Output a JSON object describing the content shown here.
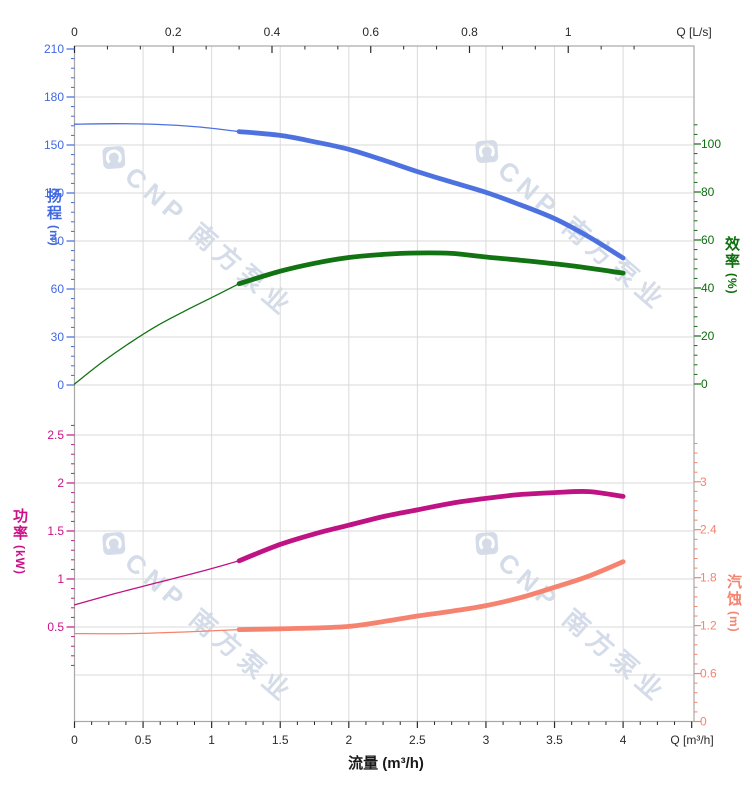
{
  "watermark": {
    "text": "CNP 南方泵业",
    "logo": "cnp-diamond-logo",
    "color": "#b9c6dc"
  },
  "chart_data": {
    "type": "line",
    "title": "",
    "x_unit": "m³/h",
    "grid": "on",
    "axes": {
      "x_top": {
        "title": "Q [L/s]",
        "ticks": [
          0,
          0.2,
          0.4,
          0.6,
          0.8,
          1
        ],
        "color": "#2a2a2a",
        "range": [
          0,
          1.25
        ]
      },
      "x_bottom": {
        "title": "Q [m³/h]",
        "axis_label": "流量 (m³/h)",
        "ticks": [
          0,
          0.5,
          1,
          1.5,
          2,
          2.5,
          3,
          3.5,
          4
        ],
        "color": "#2a2a2a",
        "range": [
          0,
          4.5
        ]
      },
      "head": {
        "title": "扬程",
        "unit": "(m)",
        "ticks": [
          210,
          180,
          150,
          120,
          90,
          60,
          30,
          0
        ],
        "color": "#4169e1",
        "range": [
          0,
          210
        ]
      },
      "eff": {
        "title": "效率",
        "unit": "(%)",
        "ticks": [
          100,
          80,
          60,
          40,
          20,
          0
        ],
        "color": "#0d6e0d",
        "range": [
          0,
          100
        ]
      },
      "power": {
        "title": "功率",
        "unit": "(kW)",
        "ticks": [
          2.5,
          2,
          1.5,
          1,
          0.5
        ],
        "color": "#cc1188",
        "range": [
          0.5,
          2.5
        ]
      },
      "npsh": {
        "title": "汽蚀",
        "unit": "(m)",
        "ticks": [
          3,
          2.4,
          1.8,
          1.2,
          0.6,
          0
        ],
        "color": "#f5836f",
        "range": [
          0,
          3
        ]
      }
    },
    "series": [
      {
        "name": "head-curve",
        "axis": "head",
        "unit": "m",
        "color": "#4d72e0",
        "split_q": 1.2,
        "thin": [
          [
            0,
            163
          ],
          [
            0.3,
            163.3
          ],
          [
            0.6,
            162.9
          ],
          [
            0.9,
            161.3
          ],
          [
            1.2,
            158.4
          ]
        ],
        "thick": [
          [
            1.2,
            158.4
          ],
          [
            1.5,
            156
          ],
          [
            1.75,
            152
          ],
          [
            2,
            147.3
          ],
          [
            2.25,
            140.6
          ],
          [
            2.5,
            133.4
          ],
          [
            2.75,
            126.8
          ],
          [
            3,
            120.4
          ],
          [
            3.25,
            112.6
          ],
          [
            3.5,
            104
          ],
          [
            3.75,
            92.6
          ],
          [
            4,
            79.4
          ]
        ]
      },
      {
        "name": "efficiency-curve",
        "axis": "eff",
        "unit": "%",
        "color": "#117311",
        "split_q": 1.2,
        "thin": [
          [
            0,
            0
          ],
          [
            0.2,
            9
          ],
          [
            0.4,
            17
          ],
          [
            0.6,
            24.2
          ],
          [
            0.8,
            30.3
          ],
          [
            1,
            36
          ],
          [
            1.2,
            41.8
          ]
        ],
        "thick": [
          [
            1.2,
            41.8
          ],
          [
            1.5,
            47
          ],
          [
            1.75,
            50.3
          ],
          [
            2,
            52.7
          ],
          [
            2.25,
            54
          ],
          [
            2.5,
            54.6
          ],
          [
            2.75,
            54.4
          ],
          [
            3,
            52.9
          ],
          [
            3.25,
            51.6
          ],
          [
            3.5,
            50.1
          ],
          [
            3.75,
            48.3
          ],
          [
            4,
            46.2
          ]
        ]
      },
      {
        "name": "power-curve",
        "axis": "power",
        "unit": "kW",
        "color": "#c01383",
        "split_q": 1.2,
        "thin": [
          [
            0,
            0.73
          ],
          [
            0.3,
            0.85
          ],
          [
            0.6,
            0.96
          ],
          [
            0.9,
            1.07
          ],
          [
            1.2,
            1.19
          ]
        ],
        "thick": [
          [
            1.2,
            1.19
          ],
          [
            1.5,
            1.36
          ],
          [
            1.75,
            1.47
          ],
          [
            2,
            1.56
          ],
          [
            2.25,
            1.65
          ],
          [
            2.5,
            1.72
          ],
          [
            2.75,
            1.79
          ],
          [
            3,
            1.84
          ],
          [
            3.25,
            1.88
          ],
          [
            3.5,
            1.9
          ],
          [
            3.75,
            1.91
          ],
          [
            4,
            1.86
          ]
        ]
      },
      {
        "name": "npsh-curve",
        "axis": "npsh",
        "unit": "m",
        "color": "#f5836f",
        "split_q": 1.2,
        "thin": [
          [
            0,
            1.1
          ],
          [
            0.4,
            1.1
          ],
          [
            0.8,
            1.12
          ],
          [
            1.2,
            1.15
          ]
        ],
        "thick": [
          [
            1.2,
            1.15
          ],
          [
            1.5,
            1.16
          ],
          [
            1.75,
            1.17
          ],
          [
            2,
            1.19
          ],
          [
            2.25,
            1.25
          ],
          [
            2.5,
            1.32
          ],
          [
            2.75,
            1.38
          ],
          [
            3,
            1.45
          ],
          [
            3.25,
            1.55
          ],
          [
            3.5,
            1.68
          ],
          [
            3.75,
            1.82
          ],
          [
            4,
            2.0
          ]
        ]
      }
    ]
  }
}
